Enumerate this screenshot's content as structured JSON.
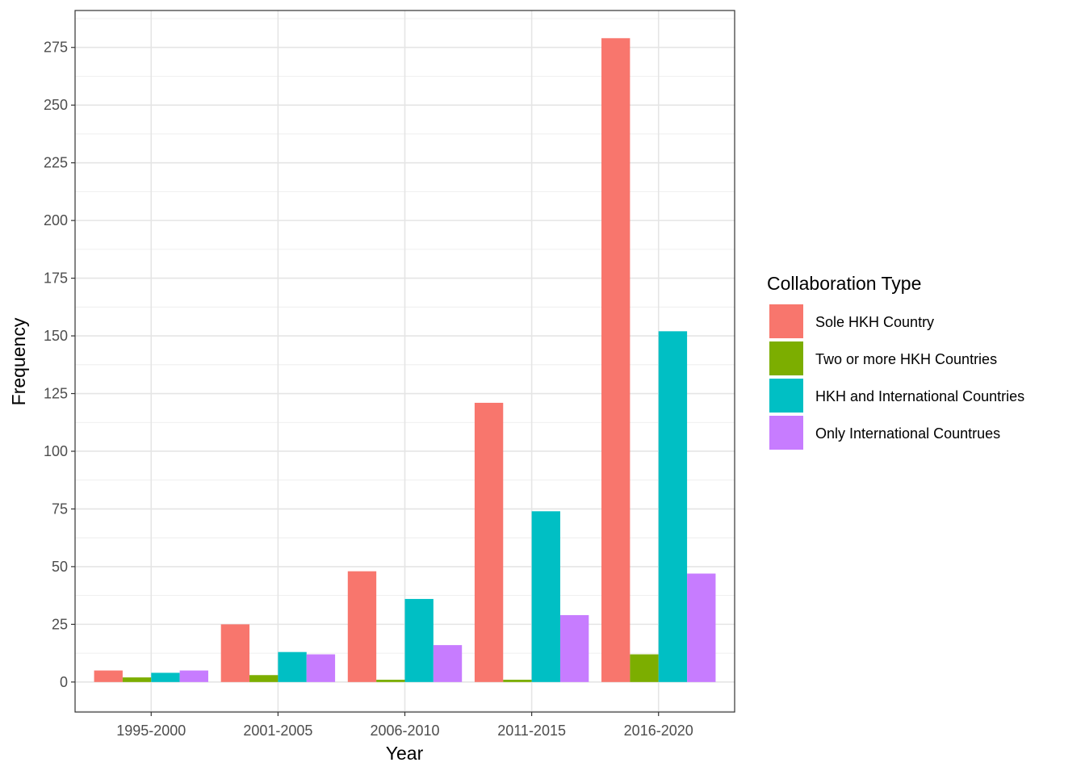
{
  "chart_data": {
    "type": "bar",
    "categories": [
      "1995-2000",
      "2001-2005",
      "2006-2010",
      "2011-2015",
      "2016-2020"
    ],
    "series": [
      {
        "name": "Sole HKH Country",
        "color": "#F8766D",
        "values": [
          5,
          25,
          48,
          121,
          279
        ]
      },
      {
        "name": "Two or more HKH Countries",
        "color": "#7CAE00",
        "values": [
          2,
          3,
          1,
          1,
          12
        ]
      },
      {
        "name": "HKH and International Countries",
        "color": "#00BFC4",
        "values": [
          4,
          13,
          36,
          74,
          152
        ]
      },
      {
        "name": "Only International Countrues",
        "color": "#C77CFF",
        "values": [
          5,
          12,
          16,
          29,
          47
        ]
      }
    ],
    "xlabel": "Year",
    "ylabel": "Frequency",
    "ylim": [
      -13,
      291
    ],
    "yticks": [
      0,
      25,
      50,
      75,
      100,
      125,
      150,
      175,
      200,
      225,
      250,
      275
    ],
    "grid": true,
    "legend": {
      "title": "Collaboration Type",
      "position": "right"
    }
  }
}
